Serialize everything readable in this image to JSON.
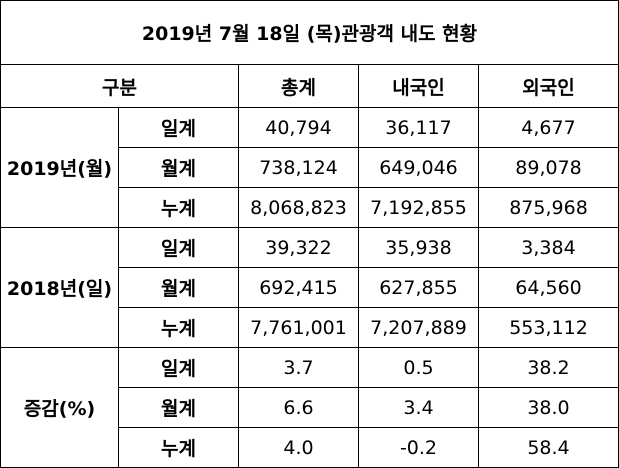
{
  "title": "2019년 7월 18일 (목)관광객 내도 현황",
  "header": [
    "구분",
    "총계",
    "내국인",
    "외국인"
  ],
  "groups": [
    {
      "label": "2019년(월)",
      "rows": [
        {
          "label": "일계",
          "cells": [
            "40,794",
            "36,117",
            "4,677"
          ]
        },
        {
          "label": "월계",
          "cells": [
            "738,124",
            "649,046",
            "89,078"
          ]
        },
        {
          "label": "누계",
          "cells": [
            "8,068,823",
            "7,192,855",
            "875,968"
          ]
        }
      ]
    },
    {
      "label": "2018년(일)",
      "rows": [
        {
          "label": "일계",
          "cells": [
            "39,322",
            "35,938",
            "3,384"
          ]
        },
        {
          "label": "월계",
          "cells": [
            "692,415",
            "627,855",
            "64,560"
          ]
        },
        {
          "label": "누계",
          "cells": [
            "7,761,001",
            "7,207,889",
            "553,112"
          ]
        }
      ]
    },
    {
      "label": "증감(%)",
      "rows": [
        {
          "label": "일계",
          "cells": [
            "3.7",
            "0.5",
            "38.2"
          ]
        },
        {
          "label": "월계",
          "cells": [
            "6.6",
            "3.4",
            "38.0"
          ]
        },
        {
          "label": "누계",
          "cells": [
            "4.0",
            "-0.2",
            "58.4"
          ]
        }
      ]
    }
  ]
}
